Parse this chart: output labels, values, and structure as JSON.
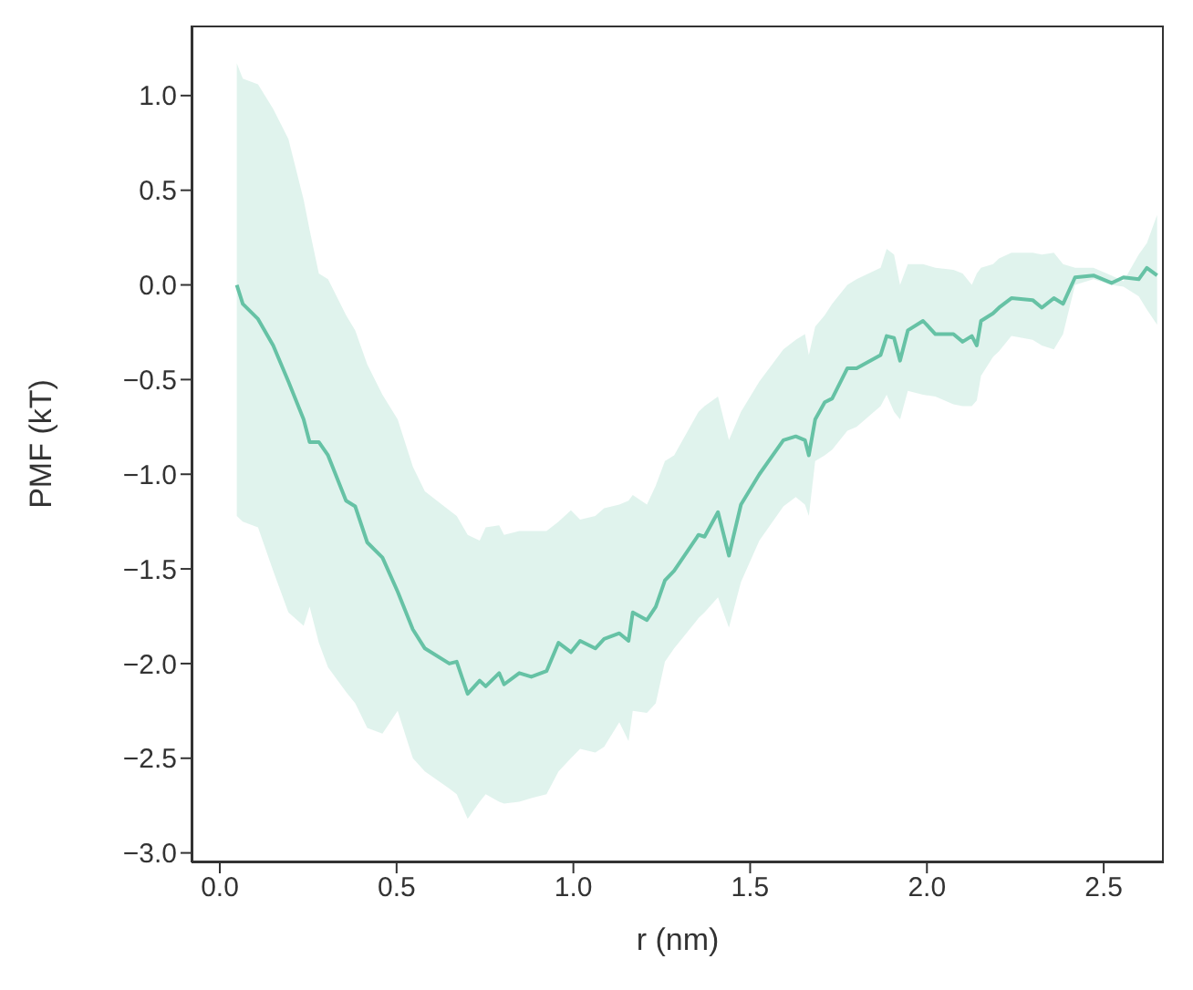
{
  "chart_data": {
    "type": "line",
    "xlabel": "r (nm)",
    "ylabel": "PMF (kT)",
    "xlim": [
      -0.08,
      2.67
    ],
    "ylim": [
      -3.05,
      1.37
    ],
    "xticks": [
      {
        "value": 0,
        "label": "0.0"
      },
      {
        "value": 0.5,
        "label": "0.5"
      },
      {
        "value": 1,
        "label": "1.0"
      },
      {
        "value": 1.5,
        "label": "1.5"
      },
      {
        "value": 2,
        "label": "2.0"
      },
      {
        "value": 2.5,
        "label": "2.5"
      }
    ],
    "yticks": [
      {
        "value": 1,
        "label": "1.0"
      },
      {
        "value": 0.5,
        "label": "0.5"
      },
      {
        "value": 0,
        "label": "0.0"
      },
      {
        "value": -0.5,
        "label": "−0.5"
      },
      {
        "value": -1,
        "label": "−1.0"
      },
      {
        "value": -1.5,
        "label": "−1.5"
      },
      {
        "value": -2,
        "label": "−2.0"
      },
      {
        "value": -2.5,
        "label": "−2.5"
      },
      {
        "value": -3,
        "label": "−3.0"
      }
    ],
    "marker": "none",
    "line_style": "solid",
    "series": [
      {
        "color": "#66c2a5",
        "x": [
          0.048,
          0.065,
          0.108,
          0.151,
          0.194,
          0.237,
          0.254,
          0.28,
          0.306,
          0.357,
          0.383,
          0.417,
          0.46,
          0.503,
          0.546,
          0.58,
          0.649,
          0.67,
          0.701,
          0.735,
          0.752,
          0.79,
          0.804,
          0.847,
          0.881,
          0.924,
          0.958,
          0.993,
          1.019,
          1.062,
          1.087,
          1.13,
          1.156,
          1.168,
          1.208,
          1.233,
          1.259,
          1.285,
          1.354,
          1.371,
          1.409,
          1.44,
          1.474,
          1.526,
          1.594,
          1.629,
          1.655,
          1.666,
          1.684,
          1.711,
          1.732,
          1.775,
          1.801,
          1.869,
          1.886,
          1.907,
          1.924,
          1.946,
          1.989,
          2.024,
          2.075,
          2.101,
          2.127,
          2.141,
          2.153,
          2.187,
          2.204,
          2.239,
          2.299,
          2.325,
          2.359,
          2.385,
          2.419,
          2.471,
          2.522,
          2.556,
          2.599,
          2.622,
          2.651
        ],
        "values": [
          0.0,
          -0.1,
          -0.18,
          -0.32,
          -0.51,
          -0.71,
          -0.83,
          -0.83,
          -0.9,
          -1.14,
          -1.17,
          -1.36,
          -1.44,
          -1.62,
          -1.82,
          -1.92,
          -2.0,
          -1.99,
          -2.16,
          -2.09,
          -2.12,
          -2.05,
          -2.11,
          -2.05,
          -2.07,
          -2.04,
          -1.89,
          -1.94,
          -1.88,
          -1.92,
          -1.87,
          -1.84,
          -1.88,
          -1.73,
          -1.77,
          -1.7,
          -1.56,
          -1.51,
          -1.32,
          -1.33,
          -1.2,
          -1.43,
          -1.16,
          -1.0,
          -0.82,
          -0.8,
          -0.82,
          -0.9,
          -0.71,
          -0.62,
          -0.6,
          -0.44,
          -0.44,
          -0.37,
          -0.27,
          -0.28,
          -0.4,
          -0.24,
          -0.19,
          -0.26,
          -0.26,
          -0.3,
          -0.27,
          -0.32,
          -0.19,
          -0.15,
          -0.12,
          -0.07,
          -0.08,
          -0.12,
          -0.07,
          -0.1,
          0.04,
          0.05,
          0.01,
          0.04,
          0.03,
          0.09,
          0.05
        ],
        "lower": [
          -1.22,
          -1.25,
          -1.28,
          -1.51,
          -1.73,
          -1.8,
          -1.7,
          -1.89,
          -2.02,
          -2.15,
          -2.21,
          -2.34,
          -2.37,
          -2.25,
          -2.5,
          -2.57,
          -2.66,
          -2.69,
          -2.82,
          -2.73,
          -2.69,
          -2.73,
          -2.74,
          -2.73,
          -2.71,
          -2.69,
          -2.57,
          -2.5,
          -2.45,
          -2.47,
          -2.44,
          -2.31,
          -2.41,
          -2.25,
          -2.26,
          -2.21,
          -1.99,
          -1.92,
          -1.76,
          -1.73,
          -1.65,
          -1.81,
          -1.57,
          -1.35,
          -1.17,
          -1.12,
          -1.16,
          -1.22,
          -0.93,
          -0.9,
          -0.87,
          -0.77,
          -0.75,
          -0.64,
          -0.58,
          -0.67,
          -0.71,
          -0.56,
          -0.58,
          -0.59,
          -0.63,
          -0.64,
          -0.64,
          -0.61,
          -0.48,
          -0.38,
          -0.35,
          -0.27,
          -0.29,
          -0.32,
          -0.34,
          -0.26,
          0.0,
          0.03,
          0.0,
          -0.01,
          -0.06,
          -0.13,
          -0.21
        ],
        "upper": [
          1.17,
          1.09,
          1.06,
          0.93,
          0.77,
          0.45,
          0.29,
          0.06,
          0.03,
          -0.16,
          -0.24,
          -0.42,
          -0.58,
          -0.71,
          -0.96,
          -1.09,
          -1.19,
          -1.22,
          -1.32,
          -1.35,
          -1.28,
          -1.27,
          -1.32,
          -1.3,
          -1.3,
          -1.3,
          -1.25,
          -1.19,
          -1.24,
          -1.22,
          -1.18,
          -1.16,
          -1.14,
          -1.11,
          -1.16,
          -1.06,
          -0.93,
          -0.9,
          -0.67,
          -0.64,
          -0.59,
          -0.82,
          -0.67,
          -0.51,
          -0.34,
          -0.29,
          -0.26,
          -0.37,
          -0.22,
          -0.16,
          -0.1,
          0.0,
          0.03,
          0.09,
          0.19,
          0.16,
          0.0,
          0.11,
          0.11,
          0.09,
          0.08,
          0.06,
          0.0,
          0.06,
          0.09,
          0.11,
          0.14,
          0.17,
          0.17,
          0.16,
          0.17,
          0.11,
          0.09,
          0.09,
          0.05,
          0.02,
          0.16,
          0.22,
          0.37
        ]
      }
    ]
  }
}
